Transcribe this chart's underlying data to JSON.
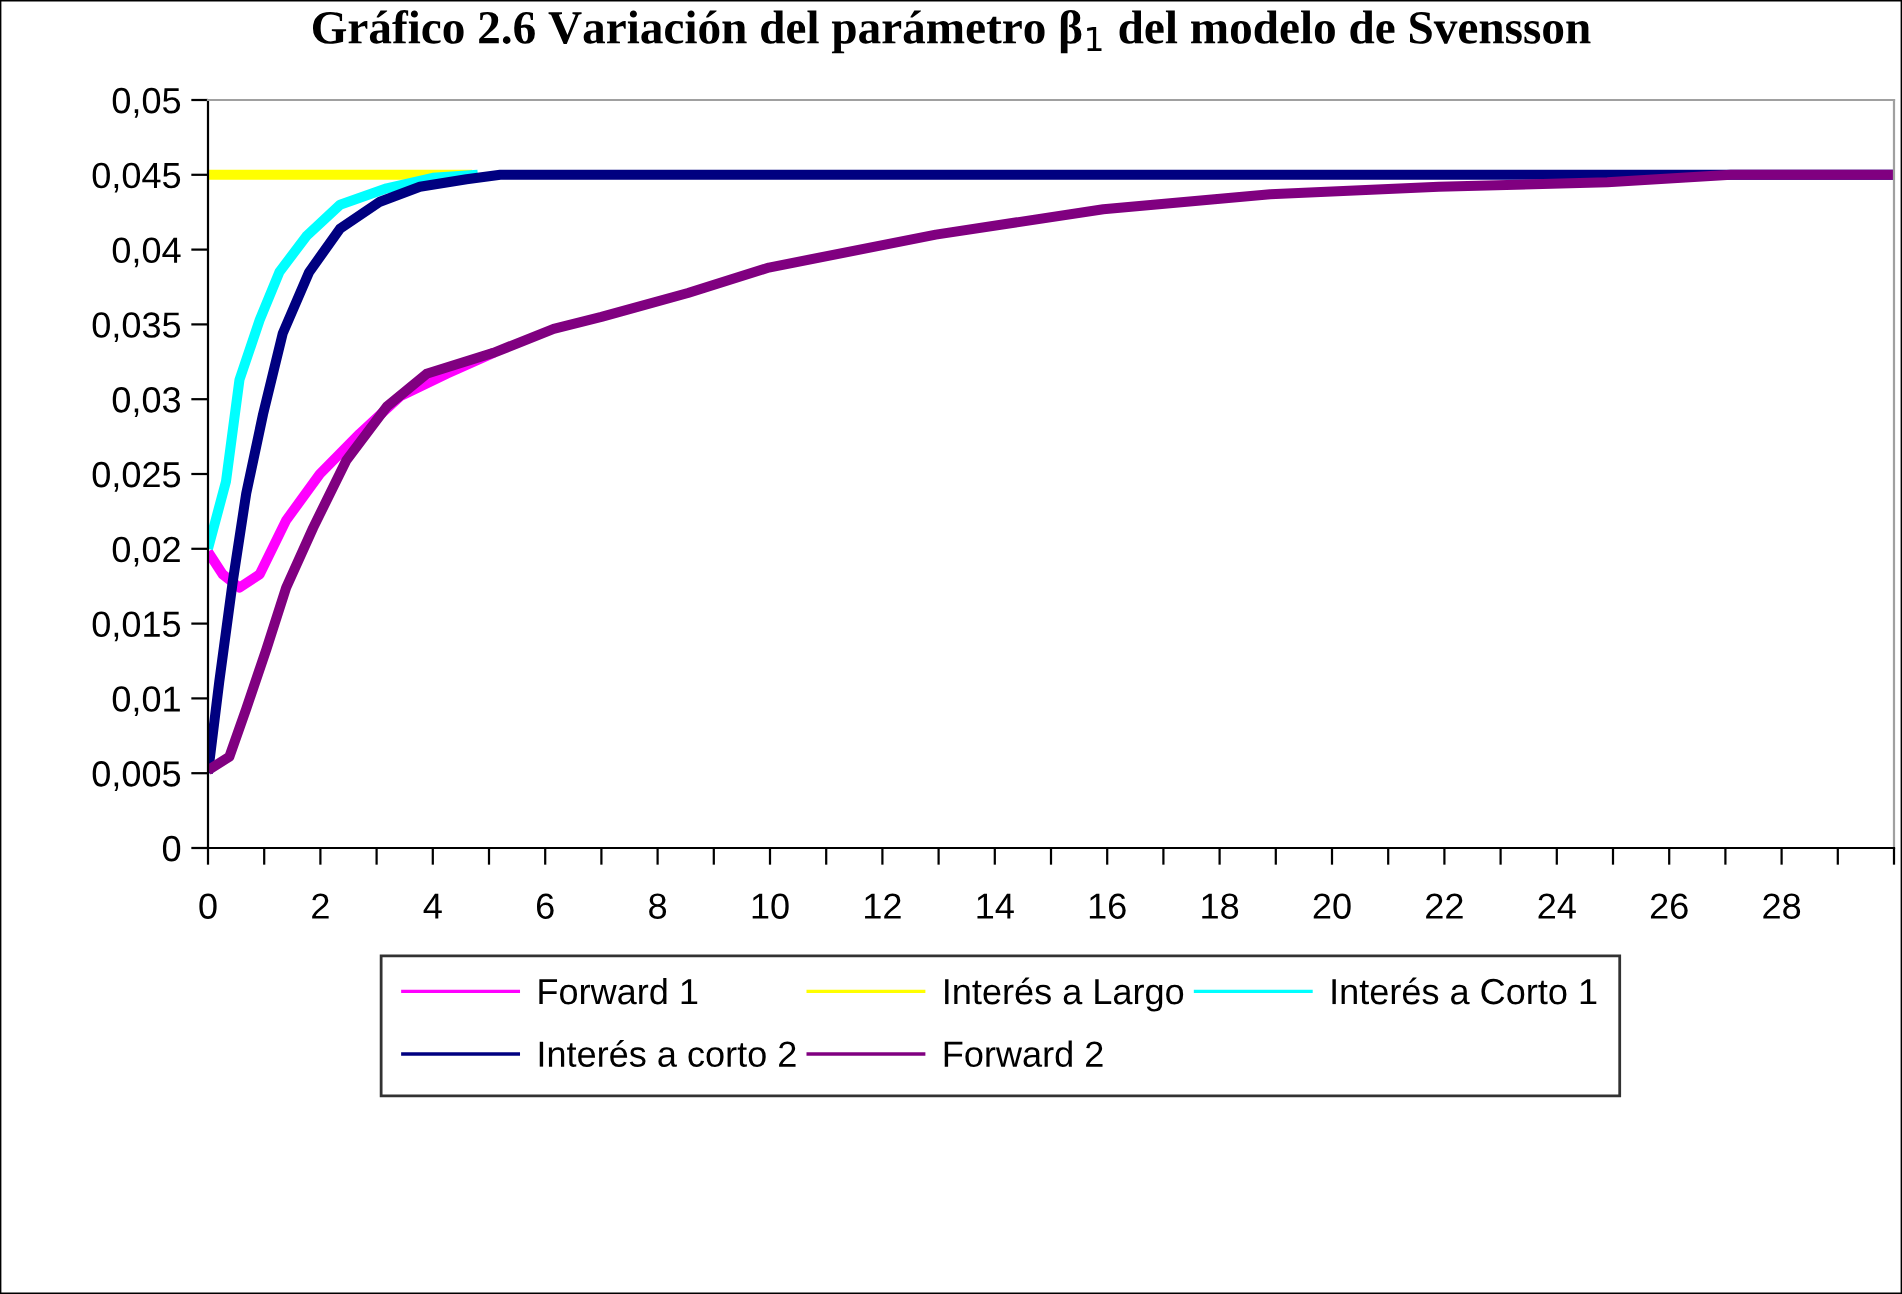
{
  "chart_data": {
    "type": "line",
    "title": "Gráfico 2.6 Variación del parámetro β$_{1}$ del modelo de Svensson",
    "xlim": [
      0,
      30
    ],
    "xticks": [
      0,
      {
        "value": 1,
        "label": null
      },
      2,
      {
        "value": 3,
        "label": null
      },
      4,
      {
        "value": 5,
        "label": null
      },
      6,
      {
        "value": 7,
        "label": null
      },
      8,
      {
        "value": 9,
        "label": null
      },
      10,
      {
        "value": 11,
        "label": null
      },
      12,
      {
        "value": 13,
        "label": null
      },
      14,
      {
        "value": 15,
        "label": null
      },
      16,
      {
        "value": 17,
        "label": null
      },
      18,
      {
        "value": 19,
        "label": null
      },
      20,
      {
        "value": 21,
        "label": null
      },
      22,
      {
        "value": 23,
        "label": null
      },
      24,
      {
        "value": 25,
        "label": null
      },
      26,
      {
        "value": 27,
        "label": null
      },
      28,
      {
        "value": 29,
        "label": null
      },
      {
        "value": 30,
        "label": null
      }
    ],
    "ylim": [
      0,
      0.05
    ],
    "yticks": [
      {
        "value": 0,
        "label": "0"
      },
      {
        "value": 0.005,
        "label": "0,005"
      },
      {
        "value": 0.01,
        "label": "0,01"
      },
      {
        "value": 0.015,
        "label": "0,015"
      },
      {
        "value": 0.02,
        "label": "0,02"
      },
      {
        "value": 0.025,
        "label": "0,025"
      },
      {
        "value": 0.03,
        "label": "0,03"
      },
      {
        "value": 0.035,
        "label": "0,035"
      },
      {
        "value": 0.04,
        "label": "0,04"
      },
      {
        "value": 0.045,
        "label": "0,045"
      },
      {
        "value": 0.05,
        "label": "0,05"
      }
    ],
    "grid": false,
    "legend": "bottom",
    "marker": "none",
    "line_style": "solid",
    "series": [
      {
        "name": "Forward 1",
        "color": "#ff00ff",
        "x": [
          0,
          0.26,
          0.56,
          0.92,
          1.39,
          1.99,
          2.7,
          3.42,
          4.25,
          5.08
        ],
        "values": [
          0.0198,
          0.0183,
          0.0174,
          0.0183,
          0.0219,
          0.025,
          0.0277,
          0.0302,
          0.0317,
          0.0331
        ]
      },
      {
        "name": "Interés a Largo",
        "color": "#ffff00",
        "x": [
          0,
          4.7
        ],
        "values": [
          0.045,
          0.045
        ]
      },
      {
        "name": "Interés a Corto 1",
        "color": "#00ffff",
        "x": [
          0,
          0.32,
          0.56,
          0.92,
          1.27,
          1.75,
          2.35,
          3.18,
          4.0,
          4.8
        ],
        "values": [
          0.02,
          0.0245,
          0.0313,
          0.0353,
          0.0385,
          0.0409,
          0.043,
          0.0441,
          0.0448,
          0.045
        ]
      },
      {
        "name": "Interés a corto 2",
        "color": "#000080",
        "x": [
          0,
          0.2,
          0.44,
          0.68,
          0.98,
          1.33,
          1.8,
          2.35,
          3.06,
          3.77,
          4.6,
          5.2,
          30
        ],
        "values": [
          0.005,
          0.0111,
          0.0178,
          0.0237,
          0.029,
          0.0344,
          0.0385,
          0.0414,
          0.0432,
          0.0442,
          0.0447,
          0.045,
          0.045
        ]
      },
      {
        "name": "Forward 2",
        "color": "#800080",
        "x": [
          0,
          0.38,
          0.68,
          1.04,
          1.39,
          1.87,
          2.46,
          3.18,
          3.89,
          5.08,
          6.15,
          7.0,
          8.54,
          9.98,
          12.95,
          15.93,
          18.9,
          21.9,
          24.9,
          27.1,
          30
        ],
        "values": [
          0.0052,
          0.0061,
          0.0093,
          0.0133,
          0.0174,
          0.0214,
          0.0259,
          0.0295,
          0.0317,
          0.0331,
          0.0347,
          0.0355,
          0.0371,
          0.0388,
          0.041,
          0.0427,
          0.0437,
          0.0442,
          0.0445,
          0.045,
          0.045
        ]
      }
    ]
  }
}
